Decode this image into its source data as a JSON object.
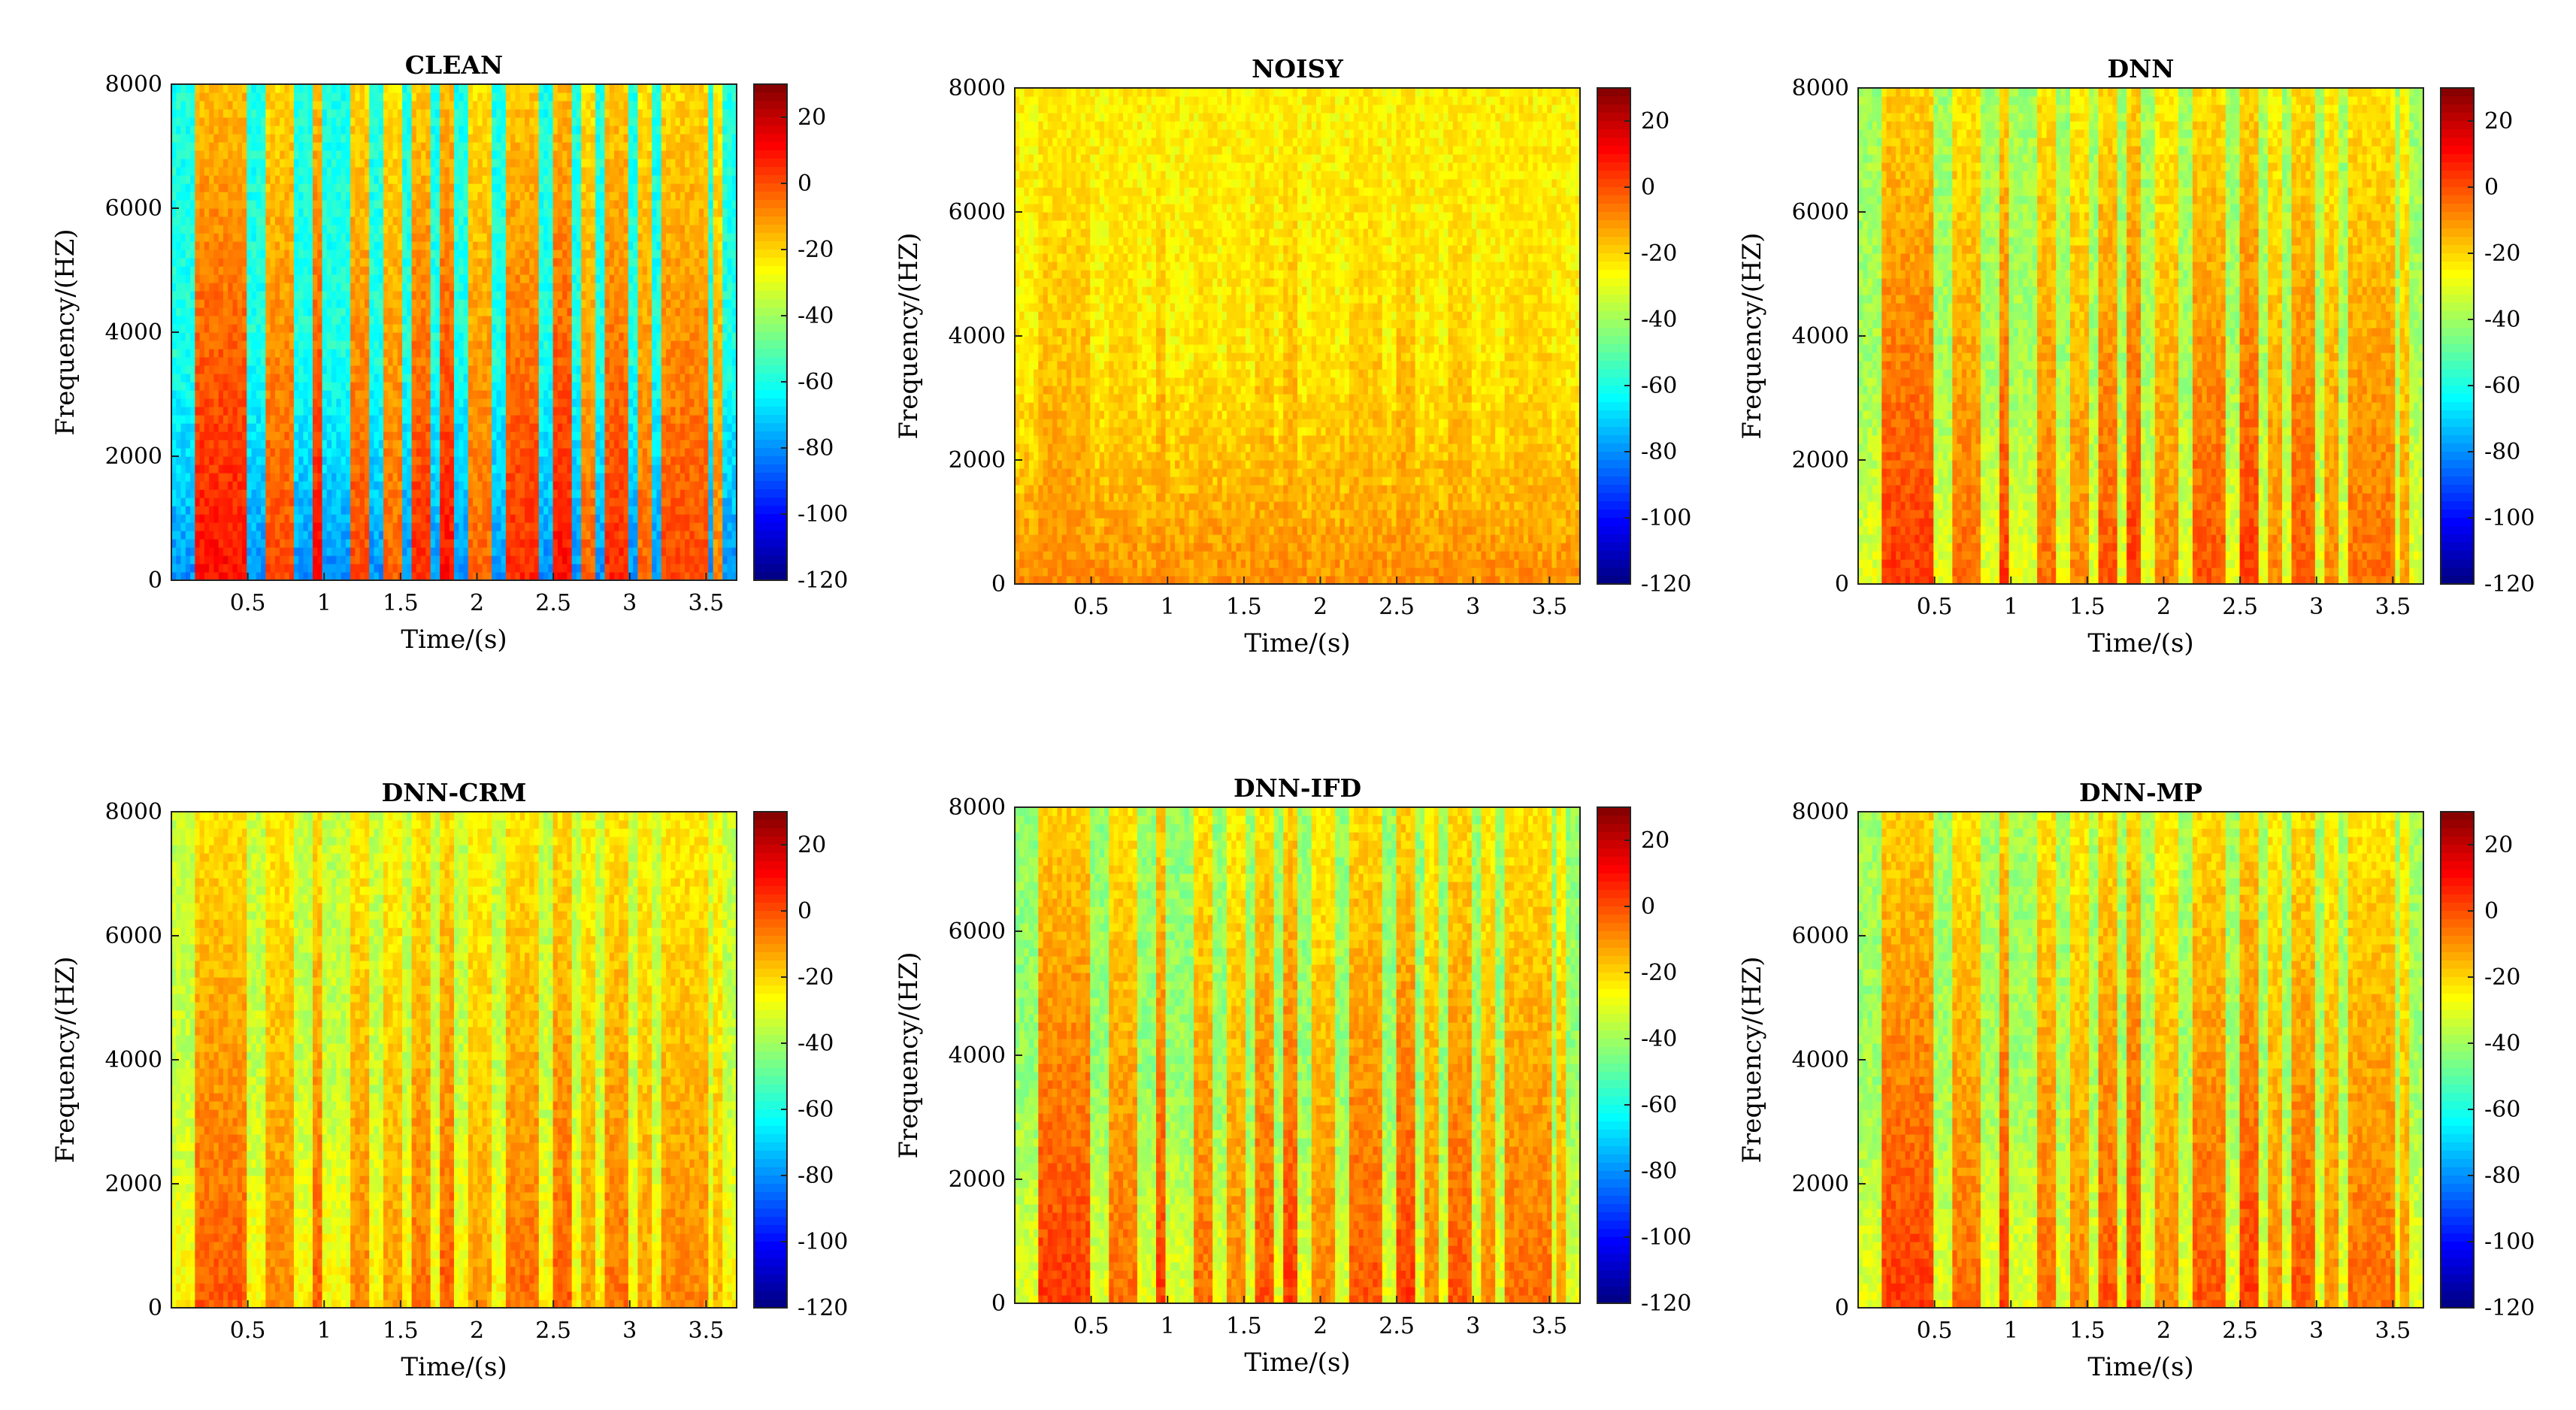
{
  "chart_data": [
    {
      "type": "heatmap",
      "title": "CLEAN",
      "xlabel": "Time/(s)",
      "ylabel": "Frequency/(HZ)",
      "xticks": [
        "0.5",
        "1",
        "1.5",
        "2",
        "2.5",
        "3",
        "3.5"
      ],
      "yticks": [
        "0",
        "2000",
        "4000",
        "6000",
        "8000"
      ],
      "xlim": [
        0,
        3.7
      ],
      "ylim": [
        0,
        8000
      ],
      "colorbar": {
        "ticks": [
          "20",
          "0",
          "-20",
          "-40",
          "-60",
          "-80",
          "-100",
          "-120"
        ],
        "range": [
          -120,
          30
        ]
      },
      "background_level": -60,
      "noise_level": -80,
      "speech_strength": 1.0
    },
    {
      "type": "heatmap",
      "title": "NOISY",
      "xlabel": "Time/(s)",
      "ylabel": "Frequency/(HZ)",
      "xticks": [
        "0.5",
        "1",
        "1.5",
        "2",
        "2.5",
        "3",
        "3.5"
      ],
      "yticks": [
        "0",
        "2000",
        "4000",
        "6000",
        "8000"
      ],
      "xlim": [
        0,
        3.7
      ],
      "ylim": [
        0,
        8000
      ],
      "colorbar": {
        "ticks": [
          "20",
          "0",
          "-20",
          "-40",
          "-60",
          "-80",
          "-100",
          "-120"
        ],
        "range": [
          -120,
          30
        ]
      },
      "background_level": -25,
      "noise_level": -10,
      "speech_strength": 0.55
    },
    {
      "type": "heatmap",
      "title": "DNN",
      "xlabel": "Time/(s)",
      "ylabel": "Frequency/(HZ)",
      "xticks": [
        "0.5",
        "1",
        "1.5",
        "2",
        "2.5",
        "3",
        "3.5"
      ],
      "yticks": [
        "0",
        "2000",
        "4000",
        "6000",
        "8000"
      ],
      "xlim": [
        0,
        3.7
      ],
      "ylim": [
        0,
        8000
      ],
      "colorbar": {
        "ticks": [
          "20",
          "0",
          "-20",
          "-40",
          "-60",
          "-80",
          "-100",
          "-120"
        ],
        "range": [
          -120,
          30
        ]
      },
      "background_level": -40,
      "noise_level": -30,
      "speech_strength": 0.85
    },
    {
      "type": "heatmap",
      "title": "DNN-CRM",
      "xlabel": "Time/(s)",
      "ylabel": "Frequency/(HZ)",
      "xticks": [
        "0.5",
        "1",
        "1.5",
        "2",
        "2.5",
        "3",
        "3.5"
      ],
      "yticks": [
        "0",
        "2000",
        "4000",
        "6000",
        "8000"
      ],
      "xlim": [
        0,
        3.7
      ],
      "ylim": [
        0,
        8000
      ],
      "colorbar": {
        "ticks": [
          "20",
          "0",
          "-20",
          "-40",
          "-60",
          "-80",
          "-100",
          "-120"
        ],
        "range": [
          -120,
          30
        ]
      },
      "background_level": -35,
      "noise_level": -25,
      "speech_strength": 0.75
    },
    {
      "type": "heatmap",
      "title": "DNN-IFD",
      "xlabel": "Time/(s)",
      "ylabel": "Frequency/(HZ)",
      "xticks": [
        "0.5",
        "1",
        "1.5",
        "2",
        "2.5",
        "3",
        "3.5"
      ],
      "yticks": [
        "0",
        "2000",
        "4000",
        "6000",
        "8000"
      ],
      "xlim": [
        0,
        3.7
      ],
      "ylim": [
        0,
        8000
      ],
      "colorbar": {
        "ticks": [
          "20",
          "0",
          "-20",
          "-40",
          "-60",
          "-80",
          "-100",
          "-120"
        ],
        "range": [
          -120,
          30
        ]
      },
      "background_level": -42,
      "noise_level": -30,
      "speech_strength": 0.85
    },
    {
      "type": "heatmap",
      "title": "DNN-MP",
      "xlabel": "Time/(s)",
      "ylabel": "Frequency/(HZ)",
      "xticks": [
        "0.5",
        "1",
        "1.5",
        "2",
        "2.5",
        "3",
        "3.5"
      ],
      "yticks": [
        "0",
        "2000",
        "4000",
        "6000",
        "8000"
      ],
      "xlim": [
        0,
        3.7
      ],
      "ylim": [
        0,
        8000
      ],
      "colorbar": {
        "ticks": [
          "20",
          "0",
          "-20",
          "-40",
          "-60",
          "-80",
          "-100",
          "-120"
        ],
        "range": [
          -120,
          30
        ]
      },
      "background_level": -40,
      "noise_level": -30,
      "speech_strength": 0.85
    }
  ]
}
